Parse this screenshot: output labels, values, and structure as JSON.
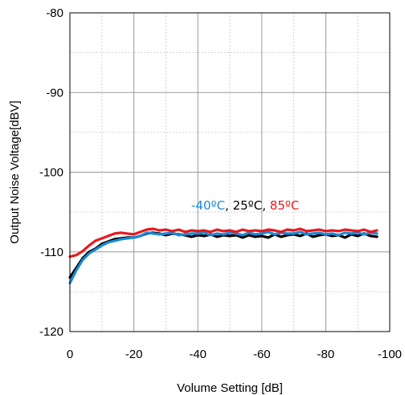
{
  "chart_data": {
    "type": "line",
    "title": "",
    "xlabel": "Volume Setting [dB]",
    "ylabel": "Output Noise Voltage[dBV]",
    "xlim": [
      0,
      -100
    ],
    "ylim": [
      -120,
      -80
    ],
    "xticks": [
      0,
      -20,
      -40,
      -60,
      -80,
      -100
    ],
    "yticks": [
      -80,
      -90,
      -100,
      -110,
      -120
    ],
    "xtick_labels": [
      "0",
      "-20",
      "-40",
      "-60",
      "-80",
      "-100"
    ],
    "ytick_labels": [
      "-80",
      "-90",
      "-100",
      "-110",
      "-120"
    ],
    "grid": true,
    "legend_placement": "center-right",
    "legend": {
      "items": [
        {
          "text": "-40ºC",
          "color": "#1a8ad8"
        },
        {
          "text": ", ",
          "color": "#000000"
        },
        {
          "text": "25ºC",
          "color": "#000000"
        },
        {
          "text": ", ",
          "color": "#000000"
        },
        {
          "text": "85ºC",
          "color": "#e8191e"
        }
      ]
    },
    "series": [
      {
        "name": "25ºC",
        "color": "#000000",
        "x": [
          0,
          -2,
          -4,
          -6,
          -8,
          -10,
          -12,
          -14,
          -16,
          -18,
          -20,
          -22,
          -24,
          -26,
          -28,
          -30,
          -32,
          -34,
          -36,
          -38,
          -40,
          -42,
          -44,
          -46,
          -48,
          -50,
          -52,
          -54,
          -56,
          -58,
          -60,
          -62,
          -64,
          -66,
          -68,
          -70,
          -72,
          -74,
          -76,
          -78,
          -80,
          -82,
          -84,
          -86,
          -88,
          -90,
          -92,
          -94,
          -96
        ],
        "y": [
          -113.2,
          -112.0,
          -110.8,
          -110.0,
          -109.6,
          -109.0,
          -108.7,
          -108.4,
          -108.3,
          -108.2,
          -108.2,
          -108.0,
          -107.7,
          -107.6,
          -107.7,
          -107.9,
          -107.7,
          -107.8,
          -107.9,
          -108.1,
          -107.9,
          -108.0,
          -107.8,
          -108.1,
          -107.9,
          -108.0,
          -107.9,
          -108.2,
          -107.9,
          -108.1,
          -108.0,
          -108.2,
          -107.8,
          -108.1,
          -107.9,
          -107.8,
          -108.0,
          -107.7,
          -108.1,
          -107.9,
          -107.8,
          -108.0,
          -107.9,
          -108.2,
          -107.8,
          -108.0,
          -107.7,
          -108.0,
          -108.1
        ]
      },
      {
        "name": "-40ºC",
        "color": "#1a8ad8",
        "x": [
          0,
          -2,
          -4,
          -6,
          -8,
          -10,
          -12,
          -14,
          -16,
          -18,
          -20,
          -22,
          -24,
          -26,
          -28,
          -30,
          -32,
          -34,
          -36,
          -38,
          -40,
          -42,
          -44,
          -46,
          -48,
          -50,
          -52,
          -54,
          -56,
          -58,
          -60,
          -62,
          -64,
          -66,
          -68,
          -70,
          -72,
          -74,
          -76,
          -78,
          -80,
          -82,
          -84,
          -86,
          -88,
          -90,
          -92,
          -94,
          -96
        ],
        "y": [
          -113.9,
          -112.3,
          -111.0,
          -110.2,
          -109.7,
          -109.2,
          -108.8,
          -108.6,
          -108.4,
          -108.3,
          -108.2,
          -108.0,
          -107.6,
          -107.7,
          -107.8,
          -107.7,
          -107.6,
          -107.9,
          -107.8,
          -107.7,
          -107.7,
          -107.6,
          -107.9,
          -107.7,
          -107.8,
          -107.6,
          -107.7,
          -107.9,
          -107.6,
          -107.8,
          -107.7,
          -107.5,
          -107.8,
          -107.6,
          -107.7,
          -107.7,
          -107.5,
          -107.8,
          -107.7,
          -107.6,
          -107.8,
          -107.7,
          -107.9,
          -107.6,
          -107.7,
          -107.6,
          -107.8,
          -107.6,
          -107.7
        ]
      },
      {
        "name": "85ºC",
        "color": "#e8191e",
        "x": [
          0,
          -2,
          -4,
          -6,
          -8,
          -10,
          -12,
          -14,
          -16,
          -18,
          -20,
          -22,
          -24,
          -26,
          -28,
          -30,
          -32,
          -34,
          -36,
          -38,
          -40,
          -42,
          -44,
          -46,
          -48,
          -50,
          -52,
          -54,
          -56,
          -58,
          -60,
          -62,
          -64,
          -66,
          -68,
          -70,
          -72,
          -74,
          -76,
          -78,
          -80,
          -82,
          -84,
          -86,
          -88,
          -90,
          -92,
          -94,
          -96
        ],
        "y": [
          -110.6,
          -110.4,
          -109.9,
          -109.2,
          -108.6,
          -108.3,
          -108.0,
          -107.7,
          -107.6,
          -107.7,
          -107.8,
          -107.5,
          -107.2,
          -107.1,
          -107.3,
          -107.2,
          -107.4,
          -107.2,
          -107.5,
          -107.3,
          -107.4,
          -107.3,
          -107.5,
          -107.2,
          -107.4,
          -107.3,
          -107.5,
          -107.2,
          -107.4,
          -107.3,
          -107.4,
          -107.2,
          -107.3,
          -107.5,
          -107.2,
          -107.3,
          -107.1,
          -107.4,
          -107.3,
          -107.2,
          -107.4,
          -107.3,
          -107.4,
          -107.2,
          -107.3,
          -107.4,
          -107.2,
          -107.5,
          -107.3
        ]
      }
    ]
  }
}
